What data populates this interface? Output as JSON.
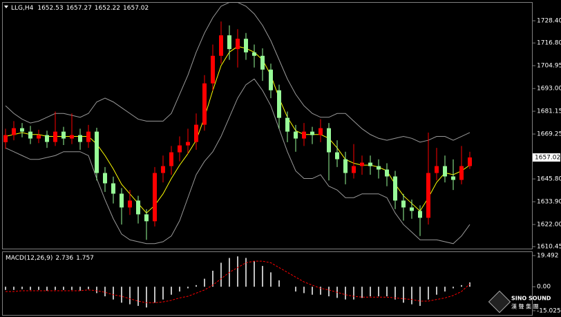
{
  "chart_data": [
    {
      "type": "candlestick",
      "title": "LLG,H4",
      "ohlc": [
        1652.53,
        1657.27,
        1652.22,
        1657.02
      ],
      "open": [
        1665.0,
        1668.7,
        1672.3,
        1670.5,
        1666.9,
        1668.7,
        1665.1,
        1670.5,
        1666.9,
        1668.7,
        1665.1,
        1670.5,
        1648.9,
        1643.5,
        1638.1,
        1630.9,
        1634.5,
        1627.3,
        1623.7,
        1648.9,
        1652.5,
        1659.7,
        1663.3,
        1665.1,
        1674.1,
        1695.7,
        1710.1,
        1720.8,
        1713.6,
        1719.0,
        1711.9,
        1710.1,
        1702.9,
        1692.1,
        1677.7,
        1670.5,
        1666.9,
        1670.5,
        1668.7,
        1672.3,
        1659.7,
        1656.1,
        1648.9,
        1652.5,
        1654.3,
        1652.5,
        1650.7,
        1647.1,
        1634.5,
        1630.9,
        1629.1,
        1625.5,
        1648.9,
        1652.5,
        1647.1,
        1645.3,
        1652.5
      ],
      "high": [
        1672.0,
        1676.0,
        1675.0,
        1673.5,
        1671.5,
        1671.0,
        1681.0,
        1673.0,
        1680.0,
        1672.0,
        1674.0,
        1672.5,
        1652.0,
        1647.0,
        1641.0,
        1640.0,
        1637.0,
        1630.0,
        1652.0,
        1658.0,
        1663.0,
        1668.0,
        1672.0,
        1680.0,
        1700.0,
        1716.0,
        1728.0,
        1726.0,
        1724.0,
        1722.0,
        1716.0,
        1714.0,
        1706.0,
        1695.0,
        1681.0,
        1674.0,
        1675.0,
        1673.0,
        1677.0,
        1675.0,
        1666.0,
        1660.0,
        1664.0,
        1658.0,
        1658.0,
        1656.0,
        1654.0,
        1650.0,
        1638.0,
        1635.0,
        1632.0,
        1670.0,
        1662.0,
        1658.0,
        1656.0,
        1663.0,
        1660.0
      ],
      "low": [
        1661.5,
        1666.0,
        1667.5,
        1664.0,
        1664.5,
        1662.0,
        1663.0,
        1663.5,
        1664.0,
        1661.0,
        1662.0,
        1645.0,
        1639.0,
        1633.0,
        1622.0,
        1627.0,
        1622.5,
        1614.0,
        1621.0,
        1644.0,
        1648.0,
        1655.0,
        1659.0,
        1661.0,
        1671.0,
        1692.0,
        1706.0,
        1708.0,
        1704.0,
        1708.0,
        1704.0,
        1697.0,
        1688.0,
        1672.0,
        1665.0,
        1660.0,
        1663.0,
        1664.0,
        1665.0,
        1645.0,
        1652.0,
        1643.0,
        1646.0,
        1648.0,
        1648.0,
        1646.0,
        1642.0,
        1630.0,
        1624.0,
        1625.0,
        1616.0,
        1622.0,
        1645.0,
        1644.0,
        1640.0,
        1643.0,
        1651.0
      ],
      "close": [
        1668.7,
        1672.3,
        1670.5,
        1666.9,
        1668.7,
        1665.1,
        1670.5,
        1666.9,
        1668.7,
        1665.1,
        1670.5,
        1648.9,
        1643.5,
        1638.1,
        1630.9,
        1634.5,
        1627.3,
        1623.7,
        1648.9,
        1652.5,
        1659.7,
        1663.3,
        1665.1,
        1674.1,
        1695.7,
        1710.1,
        1720.8,
        1713.6,
        1719.0,
        1711.9,
        1710.1,
        1702.9,
        1692.1,
        1677.7,
        1670.5,
        1666.9,
        1670.5,
        1668.7,
        1672.3,
        1659.7,
        1656.1,
        1648.9,
        1652.5,
        1654.3,
        1652.5,
        1650.7,
        1647.1,
        1634.5,
        1630.9,
        1629.1,
        1625.5,
        1648.9,
        1652.5,
        1647.1,
        1645.3,
        1652.5,
        1657.02
      ],
      "up_color": "#ff0000",
      "down_color": "#98fb98",
      "lines": [
        {
          "color": "#9a9a9a",
          "values": [
            1684,
            1680,
            1677,
            1675,
            1676,
            1678,
            1680,
            1680,
            1679,
            1678,
            1680,
            1686,
            1688,
            1686,
            1683,
            1680,
            1677,
            1676,
            1676,
            1676,
            1680,
            1690,
            1700,
            1712,
            1722,
            1730,
            1736,
            1738,
            1738,
            1736,
            1732,
            1726,
            1718,
            1708,
            1698,
            1690,
            1684,
            1680,
            1678,
            1678,
            1680,
            1680,
            1676,
            1672,
            1669,
            1667,
            1666,
            1667,
            1668,
            1667,
            1665,
            1666,
            1668,
            1668,
            1666,
            1668,
            1670
          ]
        },
        {
          "color": "#9a9a9a",
          "values": [
            1662,
            1660,
            1658,
            1656,
            1656,
            1657,
            1658,
            1660,
            1660,
            1660,
            1658,
            1646,
            1635,
            1625,
            1617,
            1614,
            1613,
            1612,
            1612,
            1613,
            1616,
            1624,
            1636,
            1648,
            1655,
            1660,
            1668,
            1678,
            1688,
            1695,
            1698,
            1692,
            1684,
            1672,
            1660,
            1650,
            1646,
            1646,
            1648,
            1642,
            1640,
            1636,
            1636,
            1638,
            1638,
            1638,
            1636,
            1628,
            1622,
            1618,
            1614,
            1614,
            1614,
            1613,
            1612,
            1616,
            1622
          ]
        },
        {
          "color": "#ffff00",
          "values": [
            1668,
            1669,
            1670,
            1669,
            1669,
            1668,
            1668,
            1668,
            1668,
            1668,
            1668,
            1664,
            1658,
            1651,
            1643,
            1638,
            1633,
            1628,
            1632,
            1638,
            1646,
            1653,
            1659,
            1666,
            1678,
            1692,
            1705,
            1712,
            1715,
            1714,
            1712,
            1708,
            1700,
            1688,
            1678,
            1671,
            1669,
            1669,
            1669,
            1667,
            1662,
            1656,
            1654,
            1653,
            1653,
            1652,
            1650,
            1643,
            1637,
            1633,
            1629,
            1636,
            1644,
            1649,
            1648,
            1650,
            1653
          ]
        }
      ],
      "ylim": [
        1609.4,
        1737.8
      ],
      "yticks": [
        {
          "value": 1610.45,
          "label": "1610.45"
        },
        {
          "value": 1622.0,
          "label": "1622.00"
        },
        {
          "value": 1633.9,
          "label": "1633.90"
        },
        {
          "value": 1645.8,
          "label": "1645.80"
        },
        {
          "value": 1669.25,
          "label": "1669.25"
        },
        {
          "value": 1681.15,
          "label": "1681.15"
        },
        {
          "value": 1693.0,
          "label": "1693.00"
        },
        {
          "value": 1704.95,
          "label": "1704.95"
        },
        {
          "value": 1716.8,
          "label": "1716.80"
        },
        {
          "value": 1728.4,
          "label": "1728.40"
        }
      ],
      "last_price": 1657.02
    },
    {
      "type": "macd",
      "title": "MACD(12,26,9)",
      "readout": [
        2.736,
        1.757
      ],
      "values": [
        -2,
        -2,
        -1.5,
        -2,
        -2,
        -2.5,
        -2,
        -2,
        -2,
        -2.5,
        -1.5,
        -4,
        -6,
        -8,
        -10,
        -11,
        -12,
        -13,
        -10,
        -8,
        -5,
        -3,
        -1,
        1,
        5,
        10,
        15,
        18,
        19,
        18,
        16,
        13,
        9,
        4,
        0,
        -3,
        -4,
        -5,
        -5,
        -6,
        -7,
        -8,
        -8,
        -7,
        -6,
        -6,
        -6,
        -8,
        -10,
        -11,
        -12,
        -8,
        -5,
        -3,
        -1,
        1,
        2.736
      ],
      "signal": [
        -3,
        -3,
        -2.5,
        -2.5,
        -2.5,
        -2.5,
        -2.5,
        -2.5,
        -2.5,
        -2.5,
        -2,
        -2.5,
        -3.5,
        -5,
        -6,
        -7.5,
        -9,
        -10,
        -10,
        -9.5,
        -8.5,
        -7,
        -6,
        -4,
        -2,
        1,
        5,
        9,
        12,
        15,
        16,
        16,
        15,
        12,
        9,
        6,
        3,
        1,
        -1,
        -2,
        -3.5,
        -5,
        -6,
        -6.5,
        -6.5,
        -6.5,
        -6.5,
        -7,
        -7.5,
        -8,
        -9,
        -9,
        -8,
        -7,
        -5.5,
        -3,
        1.757
      ],
      "color": "#c0c0c0",
      "signal_color": "#ff0000",
      "ylim": [
        -17.65,
        21.68
      ],
      "yticks": [
        19.492,
        {
          "value": 0,
          "label": "0.00"
        },
        -15.025
      ]
    }
  ],
  "logo": {
    "name": "SINO SOUND",
    "chinese": "漢 聲 集 團"
  }
}
